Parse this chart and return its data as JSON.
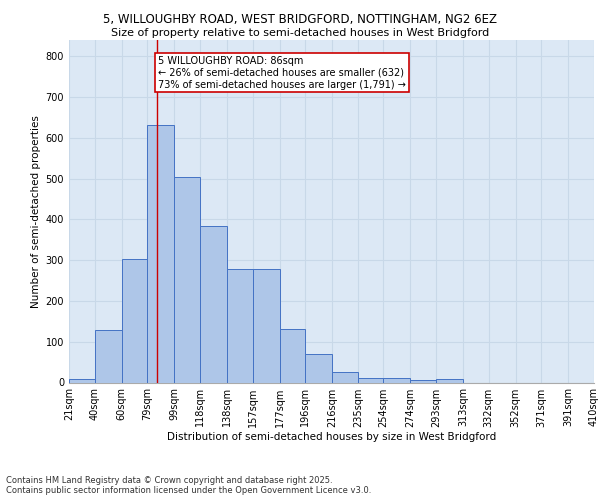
{
  "title_line1": "5, WILLOUGHBY ROAD, WEST BRIDGFORD, NOTTINGHAM, NG2 6EZ",
  "title_line2": "Size of property relative to semi-detached houses in West Bridgford",
  "xlabel": "Distribution of semi-detached houses by size in West Bridgford",
  "ylabel": "Number of semi-detached properties",
  "bin_labels": [
    "21sqm",
    "40sqm",
    "60sqm",
    "79sqm",
    "99sqm",
    "118sqm",
    "138sqm",
    "157sqm",
    "177sqm",
    "196sqm",
    "216sqm",
    "235sqm",
    "254sqm",
    "274sqm",
    "293sqm",
    "313sqm",
    "332sqm",
    "352sqm",
    "371sqm",
    "391sqm",
    "410sqm"
  ],
  "bin_edges": [
    21,
    40,
    60,
    79,
    99,
    118,
    138,
    157,
    177,
    196,
    216,
    235,
    254,
    274,
    293,
    313,
    332,
    352,
    371,
    391,
    410
  ],
  "bar_heights": [
    8,
    128,
    302,
    632,
    505,
    383,
    278,
    278,
    130,
    70,
    25,
    10,
    10,
    7,
    8,
    0,
    0,
    0,
    0,
    0
  ],
  "bar_color": "#aec6e8",
  "bar_edge_color": "#4472c4",
  "grid_color": "#c8d8e8",
  "background_color": "#dce8f5",
  "property_size": 86,
  "red_line_color": "#cc0000",
  "annotation_text": "5 WILLOUGHBY ROAD: 86sqm\n← 26% of semi-detached houses are smaller (632)\n73% of semi-detached houses are larger (1,791) →",
  "annotation_box_color": "#ffffff",
  "annotation_box_edge": "#cc0000",
  "footer_line1": "Contains HM Land Registry data © Crown copyright and database right 2025.",
  "footer_line2": "Contains public sector information licensed under the Open Government Licence v3.0.",
  "ylim": [
    0,
    840
  ],
  "yticks": [
    0,
    100,
    200,
    300,
    400,
    500,
    600,
    700,
    800
  ],
  "title1_fontsize": 8.5,
  "title2_fontsize": 8,
  "ylabel_fontsize": 7.5,
  "xlabel_fontsize": 7.5,
  "tick_fontsize": 7,
  "footer_fontsize": 6,
  "annotation_fontsize": 7
}
